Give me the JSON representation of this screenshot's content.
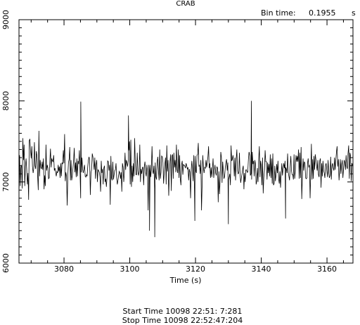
{
  "chart_data": {
    "type": "line",
    "title": "CRAB",
    "bin_time_label": "Bin time:",
    "bin_time_value": "0.1955",
    "bin_time_unit": "s",
    "xlabel": "Time (s)",
    "ylabel": "",
    "xlim": [
      3066.3,
      3167.9
    ],
    "ylim": [
      6000,
      9000
    ],
    "xticks": [
      "3080",
      "3100",
      "3120",
      "3140",
      "3160"
    ],
    "yticks": [
      "6000",
      "7000",
      "8000",
      "9000"
    ],
    "x_start": 3066.3,
    "x_step": 0.1955,
    "values": [
      6840,
      7330,
      6950,
      7180,
      7210,
      6920,
      7540,
      7270,
      7460,
      6950,
      7190,
      7290,
      7160,
      6970,
      7110,
      6780,
      7510,
      7530,
      7380,
      7290,
      7440,
      7190,
      7110,
      7170,
      7490,
      7200,
      7160,
      7380,
      7320,
      7080,
      6900,
      7630,
      7070,
      7270,
      7180,
      7160,
      7250,
      7150,
      7290,
      6910,
      7080,
      6950,
      7460,
      7140,
      7210,
      7170,
      7040,
      7050,
      7250,
      7410,
      7180,
      7290,
      7260,
      7250,
      7330,
      7140,
      7170,
      7120,
      7070,
      7130,
      7110,
      7210,
      7130,
      7190,
      7050,
      7230,
      7070,
      7240,
      7220,
      7390,
      7230,
      7590,
      7010,
      7120,
      7070,
      6710,
      7080,
      7240,
      7280,
      7430,
      7020,
      7270,
      7020,
      7080,
      7170,
      7270,
      7420,
      7120,
      7240,
      7060,
      7290,
      7070,
      7260,
      7220,
      7390,
      7110,
      6800,
      7120,
      7300,
      7160,
      7110,
      7160,
      7210,
      7070,
      7060,
      7090,
      7070,
      7190,
      7270,
      7310,
      7260,
      6840,
      7110,
      7150,
      7350,
      7310,
      7240,
      7150,
      7300,
      7040,
      7210,
      7270,
      7000,
      7150,
      7140,
      7120,
      7060,
      6880,
      7260,
      7110,
      7160,
      6970,
      7170,
      7200,
      7000,
      7040,
      6940,
      7060,
      7260,
      7250,
      7140,
      7210,
      6720,
      7320,
      7050,
      7020,
      7250,
      7030,
      7090,
      7140,
      7150,
      7230,
      7050,
      6970,
      7020,
      7080,
      7130,
      7110,
      7040,
      7120,
      6880,
      7230,
      7180,
      7000,
      7120,
      7360,
      7150,
      7270,
      7240,
      7190,
      7260,
      7390,
      7500,
      6970,
      7520,
      6940,
      7200,
      7000,
      7230,
      7070,
      7540,
      7230,
      7090,
      7090,
      7360,
      7140,
      7080,
      7120,
      7460,
      7000,
      7160,
      7100,
      7180,
      7180,
      6960,
      7190,
      7250,
      7120,
      7070,
      7210,
      7130,
      6650,
      7210,
      7130,
      7210,
      7060,
      7150,
      7440,
      7140,
      7100,
      7200,
      6920,
      7240,
      7060,
      7030,
      7240,
      7310,
      7140,
      7020,
      7400,
      7040,
      7120,
      7320,
      7310,
      7240,
      6980,
      7120,
      7220,
      7300,
      6970,
      7450,
      7130,
      7270,
      6830,
      7100,
      7250,
      7340,
      6890,
      7320,
      7340,
      7040,
      7360,
      7180,
      7270,
      7120,
      7460,
      7150,
      7110,
      7400,
      7050,
      7330,
      7040,
      6960,
      7210,
      7260,
      7090,
      7220,
      7200,
      7200,
      7170,
      7230,
      7200,
      7160,
      7180,
      7020,
      7160,
      7120,
      6800,
      7150,
      7260,
      7160,
      7010,
      7330,
      6920,
      7320,
      7140,
      7110,
      7330,
      7340,
      7480,
      7190,
      7210,
      7100,
      7270,
      6650,
      6970,
      7330,
      7180,
      7110,
      7180,
      7170,
      7270,
      7180,
      7240,
      7310,
      7440,
      7170,
      7230,
      7050,
      7180,
      7060,
      7160,
      7290,
      7050,
      7140,
      7210,
      7110,
      7080,
      7190,
      7170,
      6750,
      7130,
      6850,
      7020,
      7370,
      7300,
      6990,
      7250,
      7140,
      7040,
      7070,
      7180,
      7240,
      7280,
      7140,
      7240,
      7030,
      7060,
      7100,
      6960,
      7450,
      7260,
      7280,
      7330,
      7250,
      7070,
      7300,
      7020,
      7280,
      7400,
      7140,
      7100,
      7110,
      7360,
      7100,
      6990,
      7050,
      7100,
      7160,
      7200,
      6910,
      7110,
      7000,
      7150,
      7150,
      7120,
      7120,
      7280,
      7370,
      7330,
      7080,
      7100,
      7030,
      7370,
      7220,
      7260,
      7070,
      7270,
      7220,
      6970,
      7010,
      7170,
      7000,
      7280,
      7440,
      7060,
      7260,
      7200,
      6960,
      7300,
      6860,
      7060,
      7140,
      7390,
      7250,
      7250,
      7030,
      7240,
      7110,
      7220,
      7070,
      7340,
      7050,
      7290,
      6980,
      7350,
      6960,
      6980,
      7200,
      7010,
      7090,
      7220,
      7110,
      7260,
      7040,
      6980,
      7130,
      6930,
      7100,
      7230,
      7080,
      7160,
      7230,
      7170,
      7260,
      7180,
      7160,
      7110,
      7350,
      7120,
      7070,
      7020,
      7190,
      7320,
      7140,
      7090,
      7090,
      7030,
      7340,
      7040,
      7140,
      7330,
      7250,
      7320,
      7250,
      7400,
      7040,
      7360,
      7050,
      7430,
      6790,
      7070,
      7290,
      7140,
      7250,
      7230,
      7050,
      7040,
      7050,
      7230,
      7290,
      7180,
      7210,
      6800,
      7110,
      7470,
      7030,
      7280,
      7040,
      7320,
      7150,
      7340,
      7280,
      7200,
      7140,
      7270,
      7090,
      7060,
      7260,
      7290,
      6930,
      7230,
      7070,
      7260,
      7140,
      7110,
      7050,
      7210,
      7230,
      7140,
      7060,
      7270,
      7110,
      7050,
      7080,
      7310,
      7030,
      7200,
      7230,
      7170,
      7140,
      7300,
      7150,
      7270,
      7370,
      7440,
      7190,
      7280,
      7020,
      7140,
      7280,
      7100,
      7210,
      7270,
      7050,
      7160,
      7270,
      7240,
      7150,
      7330,
      7190,
      7160,
      7350,
      7450,
      7040,
      7360,
      7320,
      7010,
      7230,
      7210,
      7280,
      7320,
      7340,
      7380,
      7220,
      7120,
      7120,
      7290,
      6880,
      7500,
      7290,
      7180,
      7290,
      7300,
      7260,
      7120,
      7470,
      7320,
      7260,
      7090,
      7380,
      7320,
      7020,
      7120,
      7270,
      7300,
      7050,
      7060,
      7180,
      7100,
      7130,
      7230,
      7040,
      7340,
      7440,
      7200,
      7110
    ],
    "extreme_points": [
      {
        "x": 3085.1,
        "y": 7990
      },
      {
        "x": 3099.6,
        "y": 7820
      },
      {
        "x": 3106.0,
        "y": 6400
      },
      {
        "x": 3107.6,
        "y": 6320
      },
      {
        "x": 3119.8,
        "y": 6520
      },
      {
        "x": 3130.0,
        "y": 6480
      },
      {
        "x": 3137.0,
        "y": 8000
      },
      {
        "x": 3147.4,
        "y": 6550
      }
    ]
  },
  "footer": {
    "start_time": "Start Time 10098 22:51: 7:281",
    "stop_time": "Stop Time 10098 22:52:47:204"
  }
}
